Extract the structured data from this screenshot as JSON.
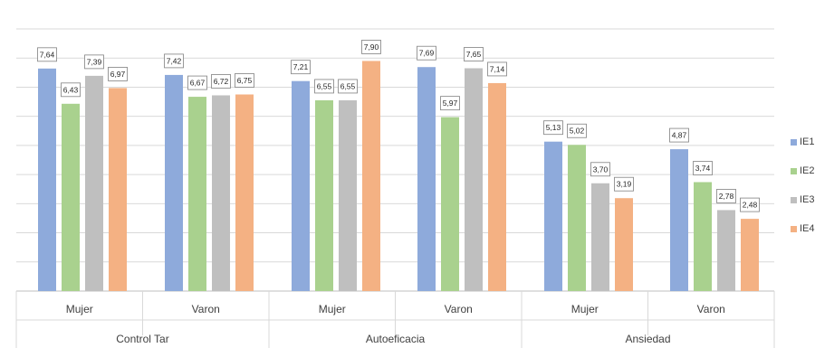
{
  "chart_data": {
    "type": "bar",
    "title": "",
    "xlabel": "",
    "ylabel": "",
    "ylim": [
      0,
      9
    ],
    "grid": true,
    "legend_position": "right",
    "groups": [
      {
        "label": "Control Tar",
        "subcategories": [
          "Mujer",
          "Varon"
        ]
      },
      {
        "label": "Autoeficacia",
        "subcategories": [
          "Mujer",
          "Varon"
        ]
      },
      {
        "label": "Ansiedad",
        "subcategories": [
          "Mujer",
          "Varon"
        ]
      }
    ],
    "categories": [
      "Mujer",
      "Varon",
      "Mujer",
      "Varon",
      "Mujer",
      "Varon"
    ],
    "series": [
      {
        "name": "IE1",
        "color": "#8eaadb",
        "values": [
          7.64,
          7.42,
          7.21,
          7.69,
          5.13,
          4.87
        ],
        "labels": [
          "7,64",
          "7,42",
          "7,21",
          "7,69",
          "5,13",
          "4,87"
        ]
      },
      {
        "name": "IE2",
        "color": "#a9d18e",
        "values": [
          6.43,
          6.67,
          6.55,
          5.97,
          5.02,
          3.74
        ],
        "labels": [
          "6,43",
          "6,67",
          "6,55",
          "5,97",
          "5,02",
          "3,74"
        ]
      },
      {
        "name": "IE3",
        "color": "#bfbfbf",
        "values": [
          7.39,
          6.72,
          6.55,
          7.65,
          3.7,
          2.78
        ],
        "labels": [
          "7,39",
          "6,72",
          "6,55",
          "7,65",
          "3,70",
          "2,78"
        ]
      },
      {
        "name": "IE4",
        "color": "#f4b183",
        "values": [
          6.97,
          6.75,
          7.9,
          7.14,
          3.19,
          2.48
        ],
        "labels": [
          "6,97",
          "6,75",
          "7,90",
          "7,14",
          "3,19",
          "2,48"
        ]
      }
    ]
  }
}
